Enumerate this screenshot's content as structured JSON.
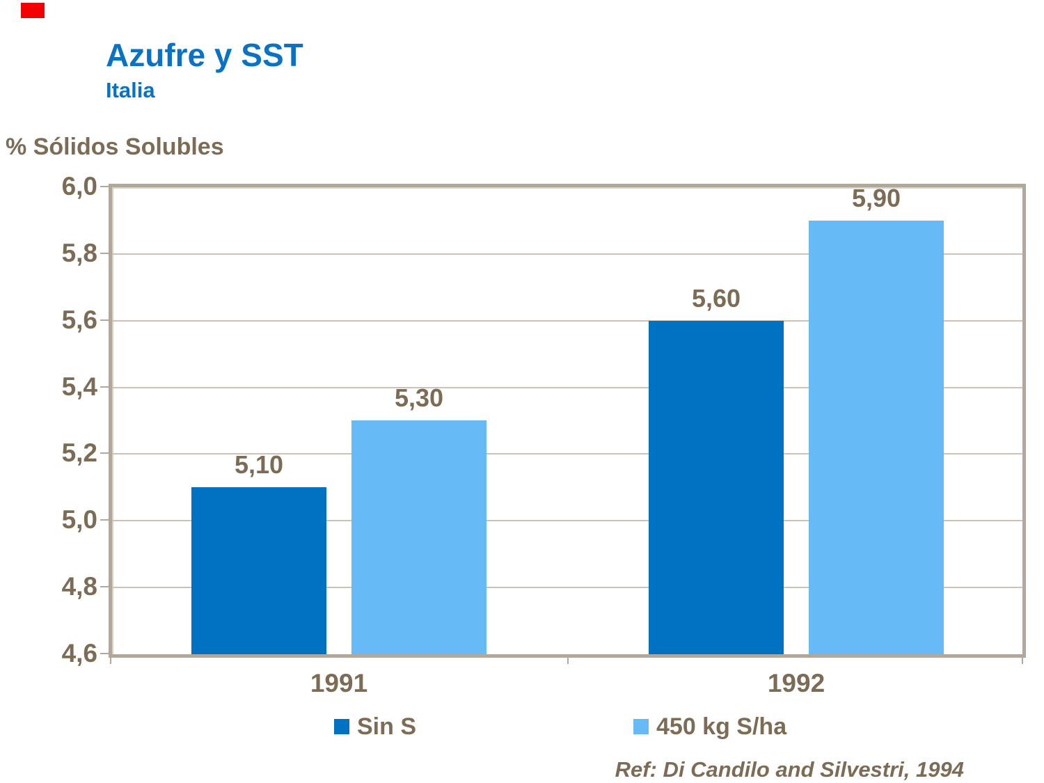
{
  "slide": {
    "title": "Azufre y SST",
    "subtitle": "Italia",
    "title_color": "#0a72c4",
    "text_color": "#7d6c55",
    "accent_color": "#f30000",
    "reference": "Ref: Di Candilo and Silvestri, 1994"
  },
  "chart_data": {
    "type": "bar",
    "title": "Azufre y SST",
    "subtitle": "Italia",
    "ylabel": "% Sólidos Solubles",
    "xlabel": "",
    "categories": [
      "1991",
      "1992"
    ],
    "series": [
      {
        "name": "Sin S",
        "color": "#0072c1",
        "values": [
          5.1,
          5.6
        ],
        "value_labels": [
          "5,10",
          "5,60"
        ]
      },
      {
        "name": "450 kg S/ha",
        "color": "#66bbf7",
        "values": [
          5.3,
          5.9
        ],
        "value_labels": [
          "5,30",
          "5,90"
        ]
      }
    ],
    "ylim": [
      4.6,
      6.0
    ],
    "ytick_step": 0.2,
    "ytick_labels": [
      "6,0",
      "5,8",
      "5,6",
      "5,4",
      "5,2",
      "5,0",
      "4,8",
      "4,6"
    ],
    "grid": true,
    "legend_position": "bottom",
    "frame_color": "#b2a79b",
    "gridline_color": "#ccc3b5"
  }
}
